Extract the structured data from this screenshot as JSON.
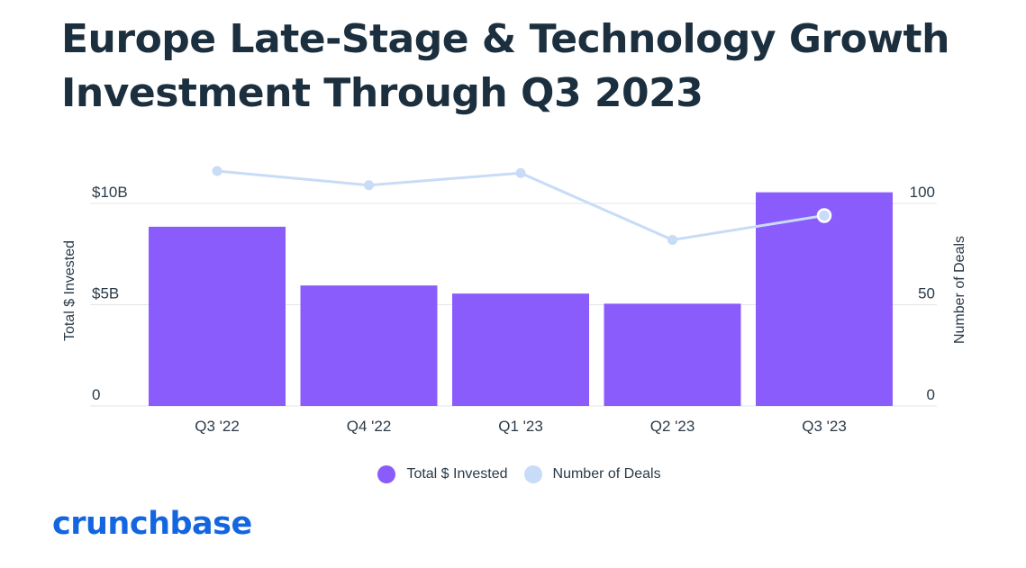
{
  "title": "Europe Late-Stage & Technology Growth Investment Through Q3 2023",
  "logo_text": "crunchbase",
  "chart_data": {
    "type": "bar",
    "categories": [
      "Q3 '22",
      "Q4 '22",
      "Q1 '23",
      "Q2 '23",
      "Q3 '23"
    ],
    "series": [
      {
        "name": "Total $ Invested",
        "type": "bar",
        "axis": "left",
        "color": "#8a5cfb",
        "values": [
          8.85,
          5.95,
          5.55,
          5.05,
          10.55
        ]
      },
      {
        "name": "Number of Deals",
        "type": "line",
        "axis": "right",
        "color": "#c8dcf7",
        "values": [
          116,
          109,
          115,
          82,
          94
        ]
      }
    ],
    "left_axis": {
      "label": "Total $ Invested",
      "ylim": [
        0,
        10
      ],
      "ticks": [
        {
          "value": 0,
          "label": "0"
        },
        {
          "value": 5,
          "label": "$5B"
        },
        {
          "value": 10,
          "label": "$10B"
        }
      ]
    },
    "right_axis": {
      "label": "Number of Deals",
      "ylim": [
        0,
        100
      ],
      "ticks": [
        {
          "value": 0,
          "label": "0"
        },
        {
          "value": 50,
          "label": "50"
        },
        {
          "value": 100,
          "label": "100"
        }
      ]
    },
    "grid": true,
    "legend": "bottom-center"
  }
}
